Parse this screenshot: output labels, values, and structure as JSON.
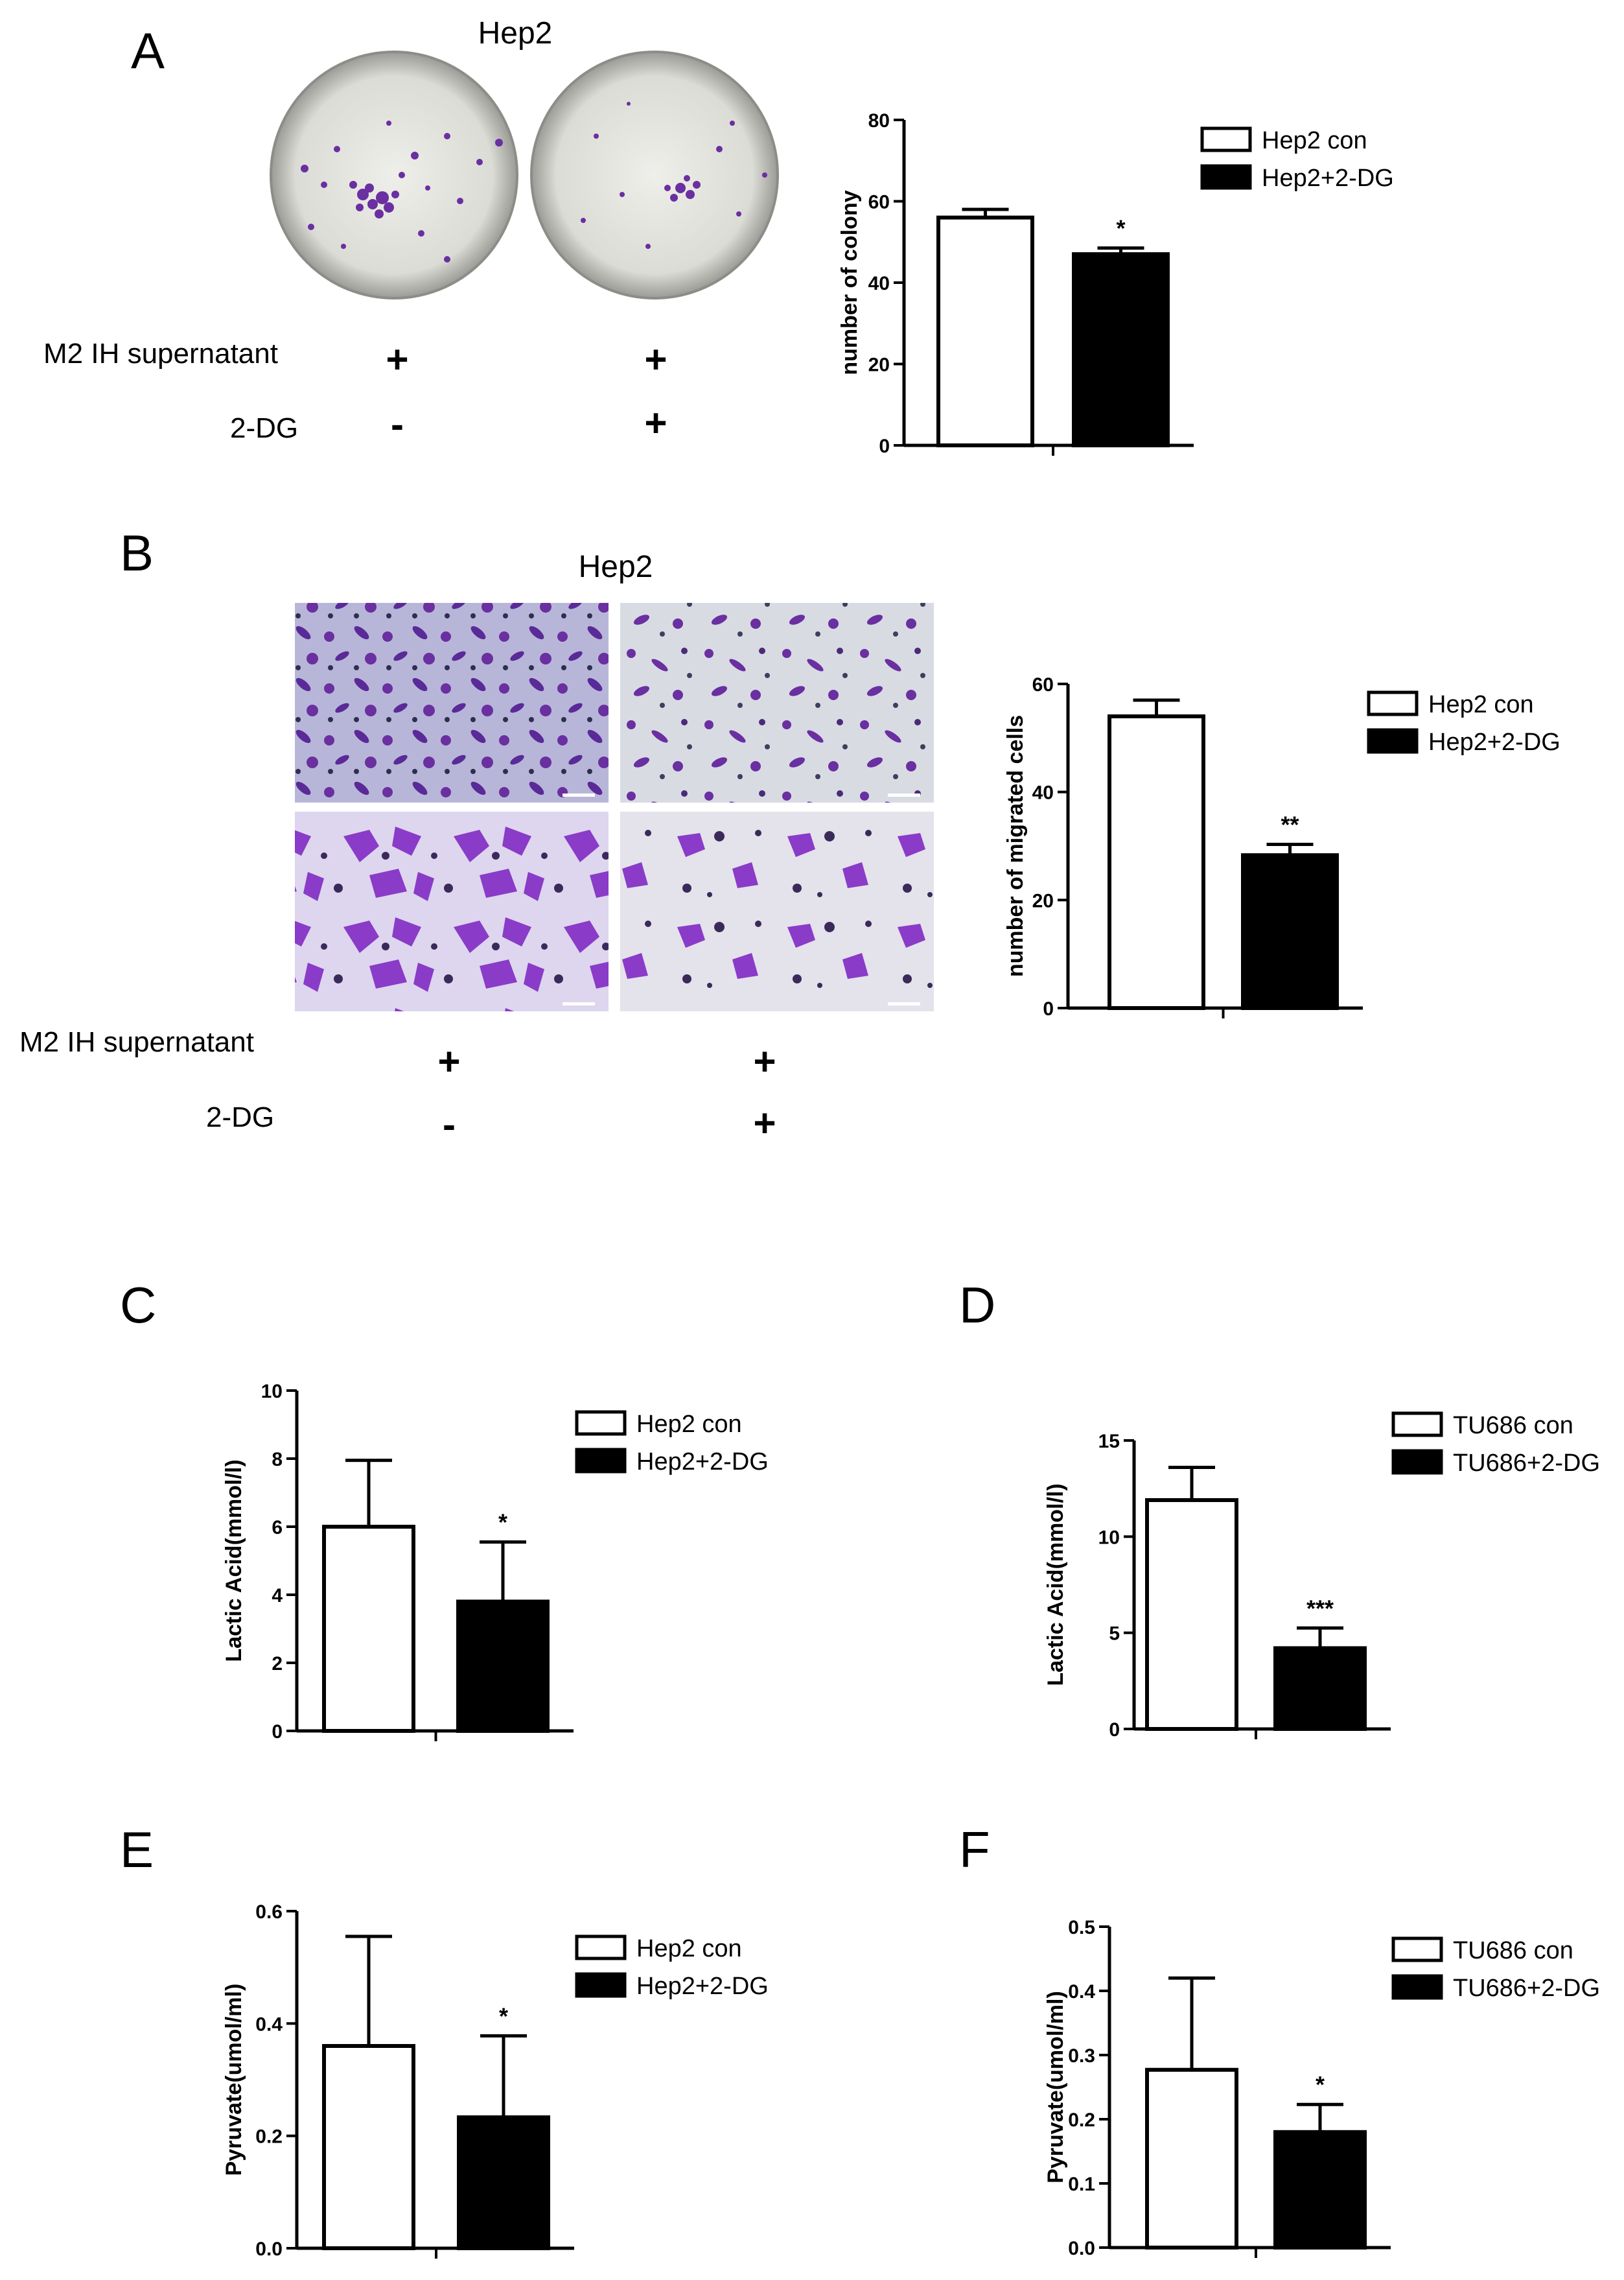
{
  "panelA": {
    "letter": "A",
    "title": "Hep2",
    "rows": [
      {
        "label": "M2 IH supernatant",
        "signs": [
          "+",
          "+"
        ]
      },
      {
        "label": "2-DG",
        "signs": [
          "-",
          "+"
        ]
      }
    ]
  },
  "panelB": {
    "letter": "B",
    "title": "Hep2",
    "rows": [
      {
        "label": "M2 IH supernatant",
        "signs": [
          "+",
          "+"
        ]
      },
      {
        "label": "2-DG",
        "signs": [
          "-",
          "+"
        ]
      }
    ]
  },
  "colors": {
    "control_fill": "#ffffff",
    "treated_fill": "#000000",
    "stain": "#6a2fa0"
  },
  "chart_data": [
    {
      "id": "A",
      "type": "bar",
      "ylabel": "number of colony",
      "ylim": [
        0,
        80
      ],
      "yticks": [
        0,
        20,
        40,
        60,
        80
      ],
      "series": [
        {
          "name": "Hep2 con",
          "value": 56,
          "error": 2
        },
        {
          "name": "Hep2+2-DG",
          "value": 47,
          "error": 1.5
        }
      ],
      "significance": "*",
      "legend_position": "top-right"
    },
    {
      "id": "B",
      "type": "bar",
      "ylabel": "number of migrated cells",
      "ylim": [
        0,
        60
      ],
      "yticks": [
        0,
        20,
        40,
        60
      ],
      "series": [
        {
          "name": "Hep2 con",
          "value": 54,
          "error": 3
        },
        {
          "name": "Hep2+2-DG",
          "value": 28.3,
          "error": 2
        }
      ],
      "significance": "**",
      "legend_position": "top-right"
    },
    {
      "id": "C",
      "letter": "C",
      "type": "bar",
      "ylabel": "Lactic Acid(mmol/l)",
      "ylim": [
        0,
        10
      ],
      "yticks": [
        0,
        2,
        4,
        6,
        8,
        10
      ],
      "series": [
        {
          "name": "Hep2 con",
          "value": 6.0,
          "error": 1.95
        },
        {
          "name": "Hep2+2-DG",
          "value": 3.8,
          "error": 1.75
        }
      ],
      "significance": "*",
      "legend_position": "top-right"
    },
    {
      "id": "D",
      "letter": "D",
      "type": "bar",
      "ylabel": "Lactic Acid(mmol/l)",
      "ylim": [
        0,
        15
      ],
      "yticks": [
        0,
        5,
        10,
        15
      ],
      "series": [
        {
          "name": "TU686 con",
          "value": 11.9,
          "error": 1.7
        },
        {
          "name": "TU686+2-DG",
          "value": 4.2,
          "error": 1.05
        }
      ],
      "significance": "***",
      "legend_position": "top-right"
    },
    {
      "id": "E",
      "letter": "E",
      "type": "bar",
      "ylabel": "Pyruvate(umol/ml)",
      "ylim": [
        0,
        0.6
      ],
      "yticks": [
        0.0,
        0.2,
        0.4,
        0.6
      ],
      "ytick_decimals": 1,
      "series": [
        {
          "name": "Hep2 con",
          "value": 0.36,
          "error": 0.195
        },
        {
          "name": "Hep2+2-DG",
          "value": 0.233,
          "error": 0.145
        }
      ],
      "significance": "*",
      "legend_position": "top-right"
    },
    {
      "id": "F",
      "letter": "F",
      "type": "bar",
      "ylabel": "Pyruvate(umol/ml)",
      "ylim": [
        0,
        0.5
      ],
      "yticks": [
        0.0,
        0.1,
        0.2,
        0.3,
        0.4,
        0.5
      ],
      "ytick_decimals": 1,
      "series": [
        {
          "name": "TU686 con",
          "value": 0.277,
          "error": 0.143
        },
        {
          "name": "TU686+2-DG",
          "value": 0.18,
          "error": 0.043
        }
      ],
      "significance": "*",
      "legend_position": "top-right"
    }
  ]
}
